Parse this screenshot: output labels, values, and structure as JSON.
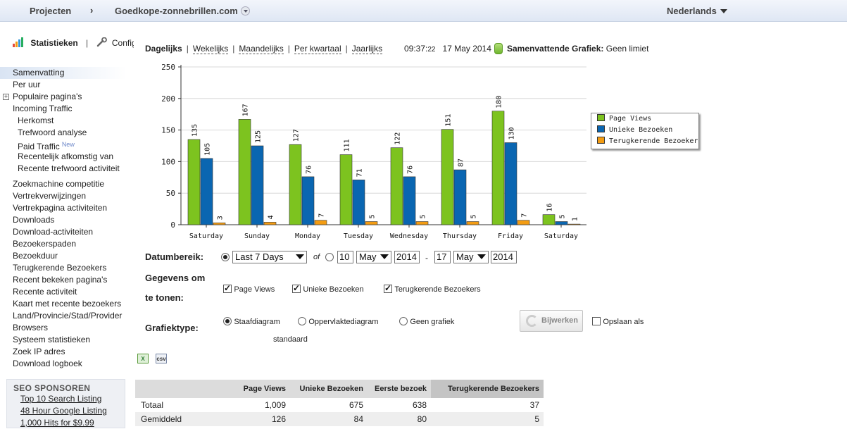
{
  "topbar": {
    "projects": "Projecten",
    "chevron": "›",
    "site": "Goedkope-zonnebrillen.com",
    "language": "Nederlands"
  },
  "stats_header": {
    "title": "Statistieken",
    "separator": "|",
    "config": "Configu"
  },
  "nav": {
    "items": [
      "Samenvatting",
      "Per uur",
      "Populaire pagina's",
      "Incoming Traffic",
      "Herkomst",
      "Trefwoord analyse",
      "Paid Traffic",
      "Recentelijk afkomstig van",
      "Recente trefwoord activiteit",
      "Zoekmachine competitie",
      "Vertrekverwijzingen",
      "Vertrekpagina activiteiten",
      "Downloads",
      "Download-activiteiten",
      "Bezoekerspaden",
      "Bezoekduur",
      "Terugkerende Bezoekers",
      "Recent bekeken pagina's",
      "Recente activiteit",
      "Kaart met recente bezoekers",
      "Land/Provincie/Stad/Provider",
      "Browsers",
      "Systeem statistieken",
      "Zoek IP adres",
      "Download logboek"
    ],
    "new_badge": "New",
    "expander": "+"
  },
  "seo": {
    "title": "SEO SPONSOREN",
    "links": [
      "Top 10 Search Listing",
      "48 Hour Google Listing",
      "1,000 Hits for $9.99"
    ]
  },
  "periods": {
    "items": [
      "Dagelijks",
      "Wekelijks",
      "Maandelijks",
      "Per kwartaal",
      "Jaarlijks"
    ],
    "sep": "|"
  },
  "timestamp": {
    "time": "09:37:",
    "seconds": "22",
    "date": "17 May 2014"
  },
  "summary": {
    "label": "Samenvattende Grafiek:",
    "value": "Geen limiet"
  },
  "chart_data": {
    "type": "bar",
    "categories": [
      "Saturday",
      "Sunday",
      "Monday",
      "Tuesday",
      "Wednesday",
      "Thursday",
      "Friday",
      "Saturday"
    ],
    "series": [
      {
        "name": "Page Views",
        "color": "#7dc31f",
        "values": [
          135,
          167,
          127,
          111,
          122,
          151,
          180,
          16
        ]
      },
      {
        "name": "Unieke Bezoeken",
        "color": "#0a66b1",
        "values": [
          105,
          125,
          76,
          71,
          76,
          87,
          130,
          5
        ]
      },
      {
        "name": "Terugkerende Bezoekers",
        "color": "#f39c12",
        "values": [
          3,
          4,
          7,
          5,
          5,
          5,
          7,
          1
        ]
      }
    ],
    "yticks": [
      0,
      50,
      100,
      150,
      200,
      250
    ],
    "ylim": [
      0,
      250
    ],
    "grid": true,
    "legend": "right"
  },
  "form": {
    "date_range_label": "Datumbereik:",
    "range_preset": "Last 7 Days",
    "of_label": "of",
    "from_day": "10",
    "from_month": "May",
    "from_year": "2014",
    "dash": "-",
    "to_day": "17",
    "to_month": "May",
    "to_year": "2014",
    "data_label_1": "Gegevens om",
    "data_label_2": "te tonen:",
    "cb_page_views": "Page Views",
    "cb_unique": "Unieke Bezoeken",
    "cb_returning": "Terugkerende Bezoekers",
    "chart_type_label": "Grafiektype:",
    "type_bar": "Staafdiagram",
    "type_area": "Oppervlaktediagram",
    "type_none": "Geen grafiek",
    "standard_label": "standaard",
    "update_button": "Bijwerken",
    "save_as": "Opslaan als"
  },
  "exports": {
    "excel": "X",
    "csv": "csv"
  },
  "table": {
    "headers": [
      "",
      "Page Views",
      "Unieke Bezoeken",
      "Eerste bezoek",
      "Terugkerende Bezoekers"
    ],
    "rows": [
      [
        "Totaal",
        "1,009",
        "675",
        "638",
        "37"
      ],
      [
        "Gemiddeld",
        "126",
        "84",
        "80",
        "5"
      ]
    ]
  }
}
